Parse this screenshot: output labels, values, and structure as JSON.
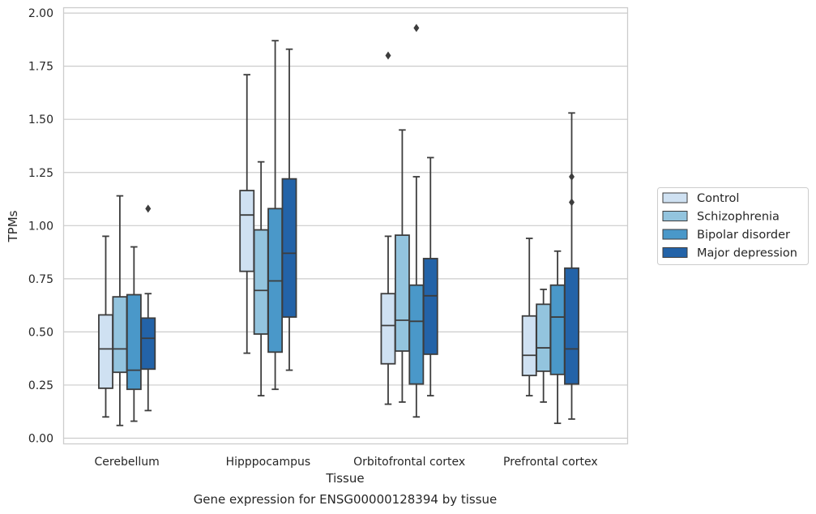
{
  "chart_data": {
    "type": "box",
    "xlabel": "Tissue",
    "ylabel": "TPMs",
    "caption": "Gene expression for ENSG00000128394 by tissue",
    "ylim": [
      -0.02,
      2.02
    ],
    "yticks": [
      "0.00",
      "0.25",
      "0.50",
      "0.75",
      "1.00",
      "1.25",
      "1.50",
      "1.75",
      "2.00"
    ],
    "grid": true,
    "legend_position": "right",
    "categories": [
      "Cerebellum",
      "Hipppocampus",
      "Orbitofrontal cortex",
      "Prefrontal cortex"
    ],
    "series": [
      {
        "name": "Control",
        "color": "#cfe1f2",
        "boxes": [
          {
            "whislo": 0.1,
            "q1": 0.235,
            "med": 0.42,
            "q3": 0.58,
            "whishi": 0.95,
            "fliers": []
          },
          {
            "whislo": 0.4,
            "q1": 0.785,
            "med": 1.05,
            "q3": 1.165,
            "whishi": 1.71,
            "fliers": []
          },
          {
            "whislo": 0.16,
            "q1": 0.35,
            "med": 0.53,
            "q3": 0.68,
            "whishi": 0.95,
            "fliers": [
              1.8
            ]
          },
          {
            "whislo": 0.2,
            "q1": 0.295,
            "med": 0.39,
            "q3": 0.575,
            "whishi": 0.94,
            "fliers": []
          }
        ]
      },
      {
        "name": "Schizophrenia",
        "color": "#93c4de",
        "boxes": [
          {
            "whislo": 0.06,
            "q1": 0.31,
            "med": 0.42,
            "q3": 0.665,
            "whishi": 1.14,
            "fliers": []
          },
          {
            "whislo": 0.2,
            "q1": 0.49,
            "med": 0.695,
            "q3": 0.98,
            "whishi": 1.3,
            "fliers": []
          },
          {
            "whislo": 0.17,
            "q1": 0.41,
            "med": 0.555,
            "q3": 0.955,
            "whishi": 1.45,
            "fliers": []
          },
          {
            "whislo": 0.17,
            "q1": 0.315,
            "med": 0.425,
            "q3": 0.63,
            "whishi": 0.7,
            "fliers": []
          }
        ]
      },
      {
        "name": "Bipolar disorder",
        "color": "#4a98c9",
        "boxes": [
          {
            "whislo": 0.08,
            "q1": 0.23,
            "med": 0.32,
            "q3": 0.675,
            "whishi": 0.9,
            "fliers": []
          },
          {
            "whislo": 0.23,
            "q1": 0.405,
            "med": 0.74,
            "q3": 1.08,
            "whishi": 1.87,
            "fliers": []
          },
          {
            "whislo": 0.1,
            "q1": 0.255,
            "med": 0.55,
            "q3": 0.72,
            "whishi": 1.23,
            "fliers": [
              1.93
            ]
          },
          {
            "whislo": 0.07,
            "q1": 0.3,
            "med": 0.57,
            "q3": 0.72,
            "whishi": 0.88,
            "fliers": []
          }
        ]
      },
      {
        "name": "Major depression",
        "color": "#2363a8",
        "boxes": [
          {
            "whislo": 0.13,
            "q1": 0.325,
            "med": 0.47,
            "q3": 0.565,
            "whishi": 0.68,
            "fliers": [
              1.08
            ]
          },
          {
            "whislo": 0.32,
            "q1": 0.57,
            "med": 0.87,
            "q3": 1.22,
            "whishi": 1.83,
            "fliers": []
          },
          {
            "whislo": 0.2,
            "q1": 0.395,
            "med": 0.67,
            "q3": 0.845,
            "whishi": 1.32,
            "fliers": []
          },
          {
            "whislo": 0.09,
            "q1": 0.255,
            "med": 0.42,
            "q3": 0.8,
            "whishi": 1.53,
            "fliers": [
              1.23,
              1.11
            ]
          }
        ]
      }
    ]
  }
}
